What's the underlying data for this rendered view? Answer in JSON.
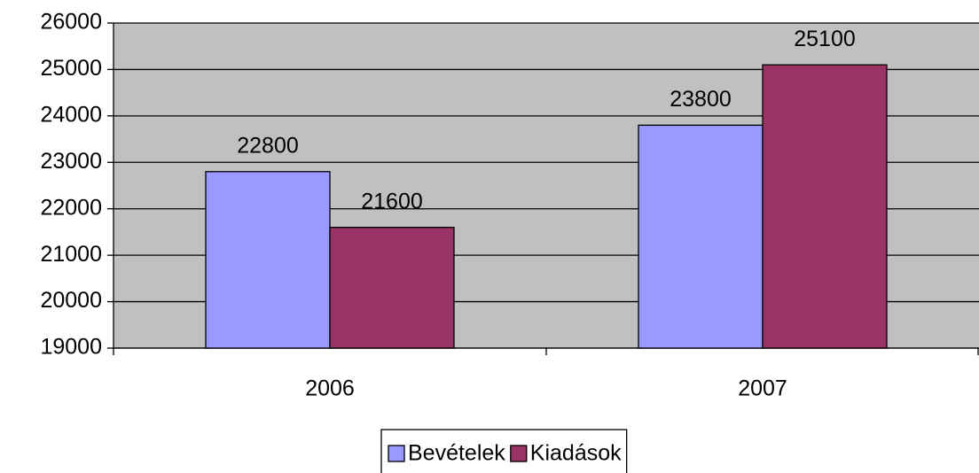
{
  "chart_data": {
    "type": "bar",
    "categories": [
      "2006",
      "2007"
    ],
    "series": [
      {
        "name": "Bevételek",
        "color": "#9999ff",
        "values": [
          22800,
          23800
        ]
      },
      {
        "name": "Kiadások",
        "color": "#993366",
        "values": [
          21600,
          25100
        ]
      }
    ],
    "ylim": [
      19000,
      26000
    ],
    "yticks": [
      19000,
      20000,
      21000,
      22000,
      23000,
      24000,
      25000,
      26000
    ],
    "grid": true
  }
}
